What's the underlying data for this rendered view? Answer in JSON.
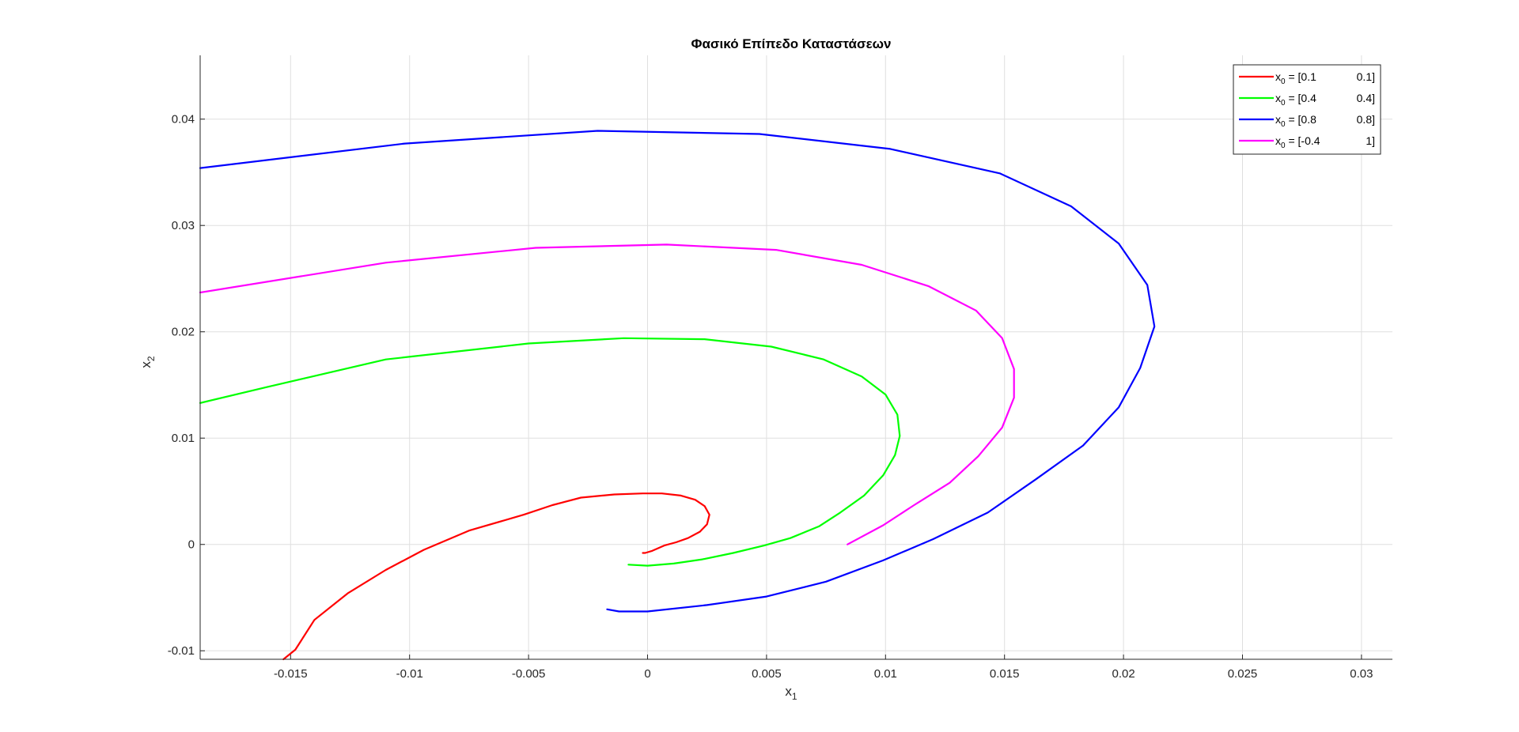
{
  "chart_data": {
    "type": "line",
    "title": "Φασικό Επίπεδο Καταστάσεων",
    "xlabel": "x",
    "xlabel_sub": "1",
    "ylabel": "x",
    "ylabel_sub": "2",
    "xlim": [
      -0.0188,
      0.0313
    ],
    "ylim": [
      -0.0108,
      0.046
    ],
    "xticks": [
      -0.015,
      -0.01,
      -0.005,
      0,
      0.005,
      0.01,
      0.015,
      0.02,
      0.025,
      0.03
    ],
    "xtick_labels": [
      "-0.015",
      "-0.01",
      "-0.005",
      "0",
      "0.005",
      "0.01",
      "0.015",
      "0.02",
      "0.025",
      "0.03"
    ],
    "yticks": [
      -0.01,
      0,
      0.01,
      0.02,
      0.03,
      0.04
    ],
    "ytick_labels": [
      "-0.01",
      "0",
      "0.01",
      "0.02",
      "0.03",
      "0.04"
    ],
    "grid": true,
    "legend_position": "top-right",
    "series": [
      {
        "name": "x0 = [0.1 0.1]",
        "legend": {
          "pre": "x",
          "sub": "0",
          "mid": " = [0.1",
          "end": "0.1]"
        },
        "color": "#ff0000",
        "x": [
          -0.0153,
          -0.0148,
          -0.014,
          -0.0126,
          -0.011,
          -0.0094,
          -0.0075,
          -0.0052,
          -0.004,
          -0.0028,
          -0.0014,
          -0.0002,
          0.0006,
          0.0014,
          0.002,
          0.0024,
          0.0026,
          0.0025,
          0.0022,
          0.0017,
          0.0012,
          0.0007,
          0.0002,
          -0.0001,
          -0.0002
        ],
        "y": [
          -0.0108,
          -0.0099,
          -0.0071,
          -0.0046,
          -0.0024,
          -0.0005,
          0.0013,
          0.0028,
          0.0037,
          0.0044,
          0.0047,
          0.0048,
          0.0048,
          0.0046,
          0.0042,
          0.0036,
          0.0028,
          0.0019,
          0.0012,
          0.0006,
          0.0002,
          -0.0001,
          -0.0006,
          -0.0008,
          -0.0008
        ]
      },
      {
        "name": "x0 = [0.4 0.4]",
        "legend": {
          "pre": "x",
          "sub": "0",
          "mid": " = [0.4",
          "end": "0.4]"
        },
        "color": "#00ff00",
        "x": [
          -0.0188,
          -0.016,
          -0.011,
          -0.005,
          -0.001,
          0.0024,
          0.0052,
          0.0074,
          0.009,
          0.01,
          0.0105,
          0.0106,
          0.0104,
          0.0099,
          0.0091,
          0.0081,
          0.0072,
          0.006,
          0.0049,
          0.0036,
          0.0023,
          0.0011,
          0.0,
          -0.0008
        ],
        "y": [
          0.0133,
          0.0148,
          0.0174,
          0.0189,
          0.0194,
          0.0193,
          0.0186,
          0.0174,
          0.0158,
          0.0141,
          0.0122,
          0.0102,
          0.0084,
          0.0065,
          0.0046,
          0.003,
          0.0017,
          0.0006,
          -0.0001,
          -0.0008,
          -0.0014,
          -0.0018,
          -0.002,
          -0.0019
        ]
      },
      {
        "name": "x0 = [0.8 0.8]",
        "legend": {
          "pre": "x",
          "sub": "0",
          "mid": " = [0.8",
          "end": "0.8]"
        },
        "color": "#0000ff",
        "x": [
          -0.0188,
          -0.0102,
          -0.0021,
          0.0047,
          0.0102,
          0.0148,
          0.0178,
          0.0198,
          0.021,
          0.0213,
          0.0207,
          0.0198,
          0.0183,
          0.0163,
          0.0143,
          0.012,
          0.0099,
          0.0075,
          0.005,
          0.0025,
          0.0,
          -0.0012,
          -0.0017
        ],
        "y": [
          0.0354,
          0.0377,
          0.0389,
          0.0386,
          0.0372,
          0.0349,
          0.0318,
          0.0283,
          0.0244,
          0.0205,
          0.0166,
          0.0129,
          0.0093,
          0.0061,
          0.003,
          0.0005,
          -0.0015,
          -0.0035,
          -0.0049,
          -0.0057,
          -0.0063,
          -0.0063,
          -0.0061
        ]
      },
      {
        "name": "x0 = [-0.4 1]",
        "legend": {
          "pre": "x",
          "sub": "0",
          "mid": " = [-0.4",
          "end": "1]"
        },
        "color": "#ff00ff",
        "x": [
          -0.0188,
          -0.011,
          -0.0047,
          0.0008,
          0.0054,
          0.009,
          0.0118,
          0.0138,
          0.0149,
          0.0154,
          0.0154,
          0.0149,
          0.0139,
          0.0127,
          0.0112,
          0.0099,
          0.0084
        ],
        "y": [
          0.0237,
          0.0265,
          0.0279,
          0.0282,
          0.0277,
          0.0263,
          0.0243,
          0.022,
          0.0194,
          0.0165,
          0.0138,
          0.011,
          0.0083,
          0.0058,
          0.0037,
          0.0018,
          0.0
        ]
      }
    ]
  }
}
